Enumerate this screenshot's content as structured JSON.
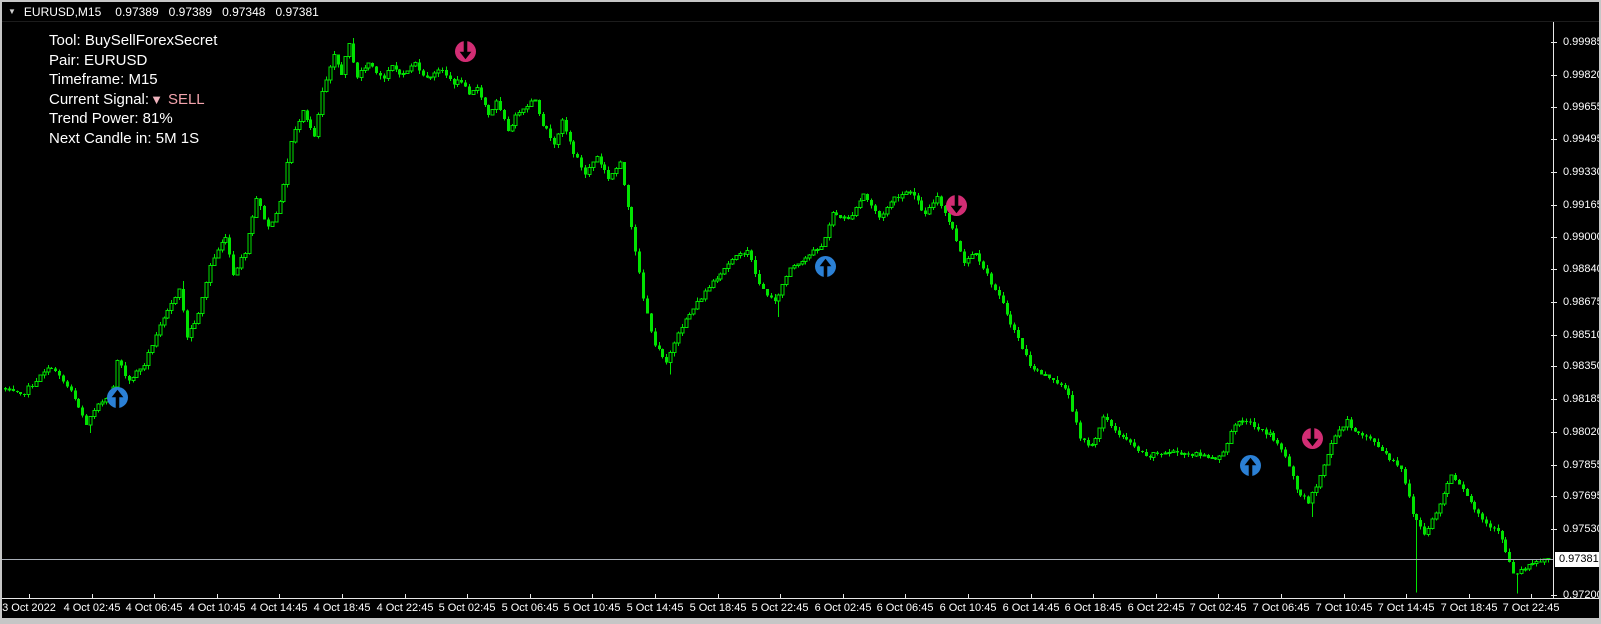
{
  "title_bar": {
    "menu_icon": "▼",
    "symbol": "EURUSD,M15",
    "open": "0.97389",
    "high": "0.97389",
    "low": "0.97348",
    "close": "0.97381"
  },
  "info_panel": {
    "tool": "Tool: BuySellForexSecret",
    "pair": "Pair: EURUSD",
    "timeframe": "Timeframe: M15",
    "signal_label": "Current Signal:",
    "signal_icon": "▼",
    "signal_value": "SELL",
    "trend_power": "Trend Power: 81%",
    "next_candle": "Next Candle in: 5M 1S"
  },
  "chart_data": {
    "type": "candlestick",
    "symbol": "EURUSD",
    "timeframe": "M15",
    "background": "#000000",
    "candle_color": "#00e300",
    "candle_count": 400,
    "y_axis": {
      "current_price": "0.97381",
      "ticks": [
        "0.99985",
        "0.99820",
        "0.99655",
        "0.99495",
        "0.99330",
        "0.99165",
        "0.99000",
        "0.98840",
        "0.98675",
        "0.98510",
        "0.98350",
        "0.98185",
        "0.98020",
        "0.97855",
        "0.97695",
        "0.97530",
        "0.97200"
      ],
      "range_visible": [
        0.972,
        0.99985
      ]
    },
    "x_axis": {
      "ticks": [
        "3 Oct 2022",
        "4 Oct 02:45",
        "4 Oct 06:45",
        "4 Oct 10:45",
        "4 Oct 14:45",
        "4 Oct 18:45",
        "4 Oct 22:45",
        "5 Oct 02:45",
        "5 Oct 06:45",
        "5 Oct 10:45",
        "5 Oct 14:45",
        "5 Oct 18:45",
        "5 Oct 22:45",
        "6 Oct 02:45",
        "6 Oct 06:45",
        "6 Oct 10:45",
        "6 Oct 14:45",
        "6 Oct 18:45",
        "6 Oct 22:45",
        "7 Oct 02:45",
        "7 Oct 06:45",
        "7 Oct 10:45",
        "7 Oct 14:45",
        "7 Oct 18:45",
        "7 Oct 22:45"
      ]
    },
    "price_path": [
      [
        0,
        0.9824
      ],
      [
        5,
        0.982
      ],
      [
        10,
        0.983
      ],
      [
        13,
        0.9835
      ],
      [
        18,
        0.9822
      ],
      [
        22,
        0.9806
      ],
      [
        25,
        0.9815
      ],
      [
        29,
        0.9824
      ],
      [
        30,
        0.9838
      ],
      [
        33,
        0.9828
      ],
      [
        37,
        0.9836
      ],
      [
        40,
        0.9851
      ],
      [
        44,
        0.9866
      ],
      [
        46,
        0.9875
      ],
      [
        48,
        0.985
      ],
      [
        51,
        0.9861
      ],
      [
        54,
        0.9886
      ],
      [
        58,
        0.9901
      ],
      [
        60,
        0.9882
      ],
      [
        63,
        0.9893
      ],
      [
        66,
        0.992
      ],
      [
        69,
        0.9905
      ],
      [
        72,
        0.9917
      ],
      [
        75,
        0.9948
      ],
      [
        78,
        0.9965
      ],
      [
        81,
        0.995
      ],
      [
        83,
        0.9973
      ],
      [
        86,
        0.9991
      ],
      [
        88,
        0.9983
      ],
      [
        90,
        0.9997
      ],
      [
        92,
        0.9981
      ],
      [
        95,
        0.9988
      ],
      [
        99,
        0.998
      ],
      [
        101,
        0.9986
      ],
      [
        104,
        0.9982
      ],
      [
        107,
        0.9988
      ],
      [
        110,
        0.998
      ],
      [
        113,
        0.9985
      ],
      [
        117,
        0.9978
      ],
      [
        119,
        0.9979
      ],
      [
        121,
        0.9971
      ],
      [
        123,
        0.9976
      ],
      [
        126,
        0.9962
      ],
      [
        128,
        0.9968
      ],
      [
        131,
        0.9954
      ],
      [
        134,
        0.9964
      ],
      [
        138,
        0.997
      ],
      [
        140,
        0.9957
      ],
      [
        143,
        0.9948
      ],
      [
        145,
        0.9958
      ],
      [
        148,
        0.9943
      ],
      [
        151,
        0.9932
      ],
      [
        154,
        0.9941
      ],
      [
        157,
        0.993
      ],
      [
        160,
        0.9937
      ],
      [
        163,
        0.9906
      ],
      [
        166,
        0.9869
      ],
      [
        169,
        0.9846
      ],
      [
        172,
        0.9836
      ],
      [
        175,
        0.9853
      ],
      [
        178,
        0.9861
      ],
      [
        180,
        0.9867
      ],
      [
        184,
        0.9878
      ],
      [
        188,
        0.9887
      ],
      [
        193,
        0.9894
      ],
      [
        196,
        0.9876
      ],
      [
        200,
        0.9867
      ],
      [
        204,
        0.9885
      ],
      [
        208,
        0.989
      ],
      [
        212,
        0.9895
      ],
      [
        215,
        0.9912
      ],
      [
        219,
        0.9909
      ],
      [
        223,
        0.9922
      ],
      [
        227,
        0.991
      ],
      [
        231,
        0.992
      ],
      [
        235,
        0.9924
      ],
      [
        239,
        0.9911
      ],
      [
        242,
        0.9921
      ],
      [
        246,
        0.9904
      ],
      [
        249,
        0.9888
      ],
      [
        252,
        0.9893
      ],
      [
        255,
        0.9881
      ],
      [
        259,
        0.9866
      ],
      [
        262,
        0.9853
      ],
      [
        266,
        0.9836
      ],
      [
        269,
        0.9831
      ],
      [
        272,
        0.9829
      ],
      [
        276,
        0.9821
      ],
      [
        279,
        0.9798
      ],
      [
        282,
        0.9795
      ],
      [
        285,
        0.9809
      ],
      [
        289,
        0.9801
      ],
      [
        292,
        0.9796
      ],
      [
        296,
        0.9789
      ],
      [
        299,
        0.9791
      ],
      [
        303,
        0.9792
      ],
      [
        307,
        0.9791
      ],
      [
        311,
        0.979
      ],
      [
        315,
        0.9789
      ],
      [
        319,
        0.9805
      ],
      [
        322,
        0.9808
      ],
      [
        325,
        0.9803
      ],
      [
        328,
        0.9801
      ],
      [
        332,
        0.979
      ],
      [
        335,
        0.9773
      ],
      [
        338,
        0.9766
      ],
      [
        341,
        0.978
      ],
      [
        345,
        0.9801
      ],
      [
        348,
        0.9807
      ],
      [
        351,
        0.9801
      ],
      [
        355,
        0.9797
      ],
      [
        359,
        0.9789
      ],
      [
        362,
        0.9784
      ],
      [
        365,
        0.9761
      ],
      [
        368,
        0.9751
      ],
      [
        371,
        0.9761
      ],
      [
        375,
        0.9781
      ],
      [
        378,
        0.9774
      ],
      [
        381,
        0.9763
      ],
      [
        384,
        0.9756
      ],
      [
        387,
        0.9753
      ],
      [
        391,
        0.973
      ],
      [
        394,
        0.9733
      ],
      [
        397,
        0.9736
      ],
      [
        400,
        0.97381
      ]
    ],
    "wick_extremes": [
      {
        "i": 22,
        "lo": 0.98015
      },
      {
        "i": 46,
        "hi": 0.9878
      },
      {
        "i": 90,
        "hi": 1.00005
      },
      {
        "i": 172,
        "lo": 0.9831
      },
      {
        "i": 200,
        "lo": 0.986
      },
      {
        "i": 338,
        "lo": 0.9759
      },
      {
        "i": 365,
        "lo": 0.9721
      },
      {
        "i": 391,
        "lo": 0.97205
      }
    ],
    "signals": [
      {
        "type": "buy",
        "candle": 29,
        "price": 0.98195
      },
      {
        "type": "sell",
        "candle": 119,
        "price": 0.99935
      },
      {
        "type": "buy",
        "candle": 212,
        "price": 0.98855
      },
      {
        "type": "sell",
        "candle": 246,
        "price": 0.9916
      },
      {
        "type": "buy",
        "candle": 322,
        "price": 0.9785
      },
      {
        "type": "sell",
        "candle": 338,
        "price": 0.97985
      }
    ],
    "signal_colors": {
      "buy": "#2b80d5",
      "sell": "#d22d74"
    }
  }
}
